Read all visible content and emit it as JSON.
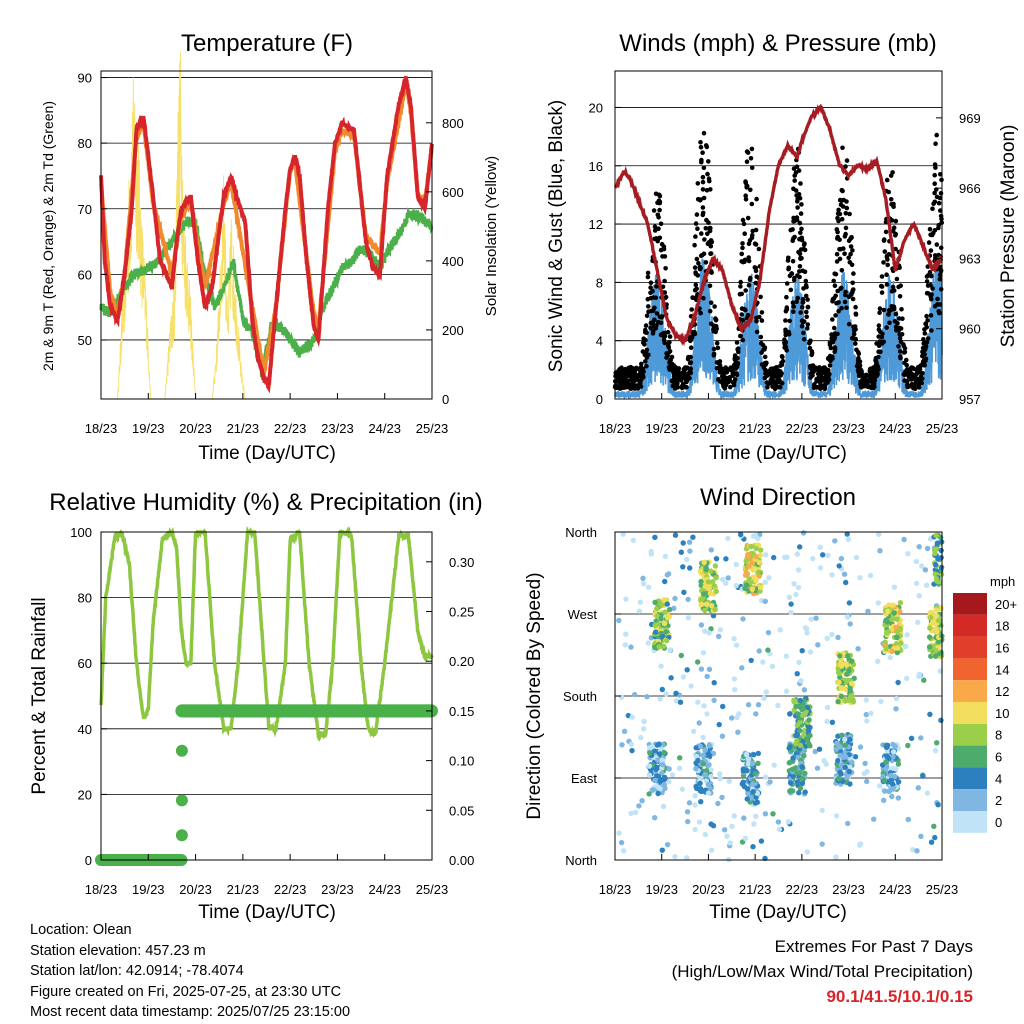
{
  "x_ticks": [
    "18/23",
    "19/23",
    "20/23",
    "21/23",
    "22/23",
    "23/23",
    "24/23",
    "25/23"
  ],
  "x_axis_label": "Time (Day/UTC)",
  "panels": {
    "temperature": {
      "title": "Temperature (F)",
      "ylabel_left": "2m & 9m T (Red, Orange) & 2m Td (Green)",
      "ylabel_right": "Solar Insolation (Yellow)",
      "yticks_left": [
        "90",
        "80",
        "70",
        "60",
        "50"
      ],
      "yticks_right": [
        "800",
        "600",
        "400",
        "200",
        "0"
      ]
    },
    "winds": {
      "title": "Winds (mph) & Pressure (mb)",
      "ylabel_left": "Sonic Wind & Gust (Blue, Black)",
      "ylabel_right": "Station Pressure (Maroon)",
      "yticks_left": [
        "20",
        "16",
        "12",
        "8",
        "4",
        "0"
      ],
      "yticks_right": [
        "969",
        "966",
        "963",
        "960",
        "957"
      ]
    },
    "humidity": {
      "title": "Relative Humidity (%) & Precipitation (in)",
      "ylabel_left": "Percent & Total Rainfall",
      "yticks_left": [
        "100",
        "80",
        "60",
        "40",
        "20",
        "0"
      ],
      "yticks_right": [
        "0.30",
        "0.25",
        "0.20",
        "0.15",
        "0.10",
        "0.05",
        "0.00"
      ]
    },
    "direction": {
      "title": "Wind Direction",
      "ylabel_left": "Direction (Colored By Speed)",
      "yticks_left": [
        "North",
        "West",
        "South",
        "East",
        "North"
      ],
      "legend_title": "mph",
      "legend_labels": [
        "20+",
        "18",
        "16",
        "14",
        "12",
        "10",
        "8",
        "6",
        "4",
        "2",
        "0"
      ],
      "legend_colors": [
        "#a5191d",
        "#d42a26",
        "#e23f2a",
        "#f1642f",
        "#f9a84a",
        "#f2dd5c",
        "#9bcf49",
        "#4dab6c",
        "#2c80bd",
        "#7fb7e2",
        "#c1e3f7"
      ]
    }
  },
  "chart_data": [
    {
      "type": "line",
      "title": "Temperature (F)",
      "x_range": [
        "18/23",
        "25/23"
      ],
      "ylim_left": [
        41,
        91
      ],
      "ylim_right": [
        0,
        950
      ],
      "series": [
        {
          "name": "2m T",
          "color": "#d6262b",
          "axis": "left",
          "x_days": [
            0,
            0.08,
            0.2,
            0.35,
            0.5,
            0.65,
            0.75,
            0.9,
            1.1,
            1.25,
            1.5,
            1.6,
            1.7,
            1.9,
            2.05,
            2.2,
            2.35,
            2.6,
            2.75,
            2.9,
            3.05,
            3.2,
            3.3,
            3.45,
            3.55,
            3.7,
            3.9,
            4.0,
            4.1,
            4.2,
            4.35,
            4.5,
            4.6,
            4.8,
            4.95,
            5.1,
            5.35,
            5.6,
            5.75,
            5.9,
            6.05,
            6.3,
            6.45,
            6.55,
            6.7,
            6.85,
            7.0
          ],
          "values": [
            75,
            62,
            55,
            53,
            60,
            70,
            82,
            84,
            72,
            62,
            58,
            65,
            70,
            72,
            62,
            55,
            58,
            72,
            75,
            71,
            68,
            53,
            48,
            44,
            43,
            55,
            70,
            76,
            78,
            75,
            62,
            52,
            50,
            70,
            80,
            83,
            82,
            65,
            61,
            60,
            75,
            86,
            90,
            86,
            72,
            70,
            80
          ]
        },
        {
          "name": "9m T",
          "color": "#f08a2e",
          "axis": "left",
          "x_days": [
            0,
            0.2,
            0.35,
            0.5,
            0.75,
            0.9,
            1.1,
            1.5,
            1.7,
            1.9,
            2.2,
            2.6,
            2.75,
            3.2,
            3.45,
            3.7,
            4.0,
            4.1,
            4.5,
            4.6,
            4.95,
            5.1,
            5.35,
            5.6,
            5.9,
            6.05,
            6.45,
            6.55,
            6.7,
            6.85,
            7.0
          ],
          "values": [
            74,
            57,
            54,
            60,
            81,
            83,
            71,
            60,
            69,
            71,
            58,
            71,
            74,
            55,
            45,
            55,
            76,
            77,
            54,
            52,
            79,
            82,
            81,
            66,
            63,
            74,
            89,
            85,
            72,
            71,
            79
          ]
        },
        {
          "name": "2m Td",
          "color": "#4bb04a",
          "axis": "left",
          "x_days": [
            0,
            0.2,
            0.5,
            0.7,
            1.0,
            1.2,
            1.4,
            1.6,
            1.8,
            2.0,
            2.2,
            2.4,
            2.6,
            2.8,
            3.0,
            3.2,
            3.4,
            3.6,
            3.8,
            4.0,
            4.2,
            4.5,
            4.7,
            4.9,
            5.1,
            5.3,
            5.5,
            5.7,
            5.9,
            6.1,
            6.3,
            6.5,
            6.7,
            6.9,
            7.0
          ],
          "values": [
            55,
            54,
            58,
            60,
            61,
            62,
            64,
            66,
            68,
            68,
            60,
            55,
            58,
            62,
            53,
            51,
            45,
            52,
            52,
            50,
            48,
            50,
            55,
            58,
            61,
            62,
            64,
            63,
            61,
            64,
            66,
            69,
            69,
            68,
            67
          ]
        },
        {
          "name": "Solar Insolation",
          "color": "#f7e06a",
          "axis": "right",
          "x_days": [
            0,
            0.35,
            0.45,
            0.55,
            0.62,
            0.7,
            0.78,
            0.85,
            0.95,
            1.05,
            1.35,
            1.45,
            1.55,
            1.62,
            1.68,
            1.75,
            1.82,
            1.9,
            2.0,
            2.35,
            2.45,
            2.52,
            2.6,
            2.68,
            2.75,
            2.85,
            2.95,
            3.05,
            7.0
          ],
          "values": [
            0,
            0,
            250,
            450,
            650,
            860,
            700,
            500,
            300,
            0,
            0,
            180,
            300,
            750,
            920,
            500,
            400,
            250,
            0,
            0,
            150,
            350,
            600,
            200,
            500,
            300,
            100,
            0,
            0
          ]
        }
      ]
    },
    {
      "type": "line",
      "title": "Winds (mph) & Pressure (mb)",
      "x_range": [
        "18/23",
        "25/23"
      ],
      "ylim_left": [
        0,
        22.5
      ],
      "ylim_right": [
        957,
        971
      ],
      "series": [
        {
          "name": "Station Pressure",
          "color": "#a51d23",
          "axis": "right",
          "x_days": [
            0,
            0.2,
            0.3,
            0.5,
            0.7,
            0.9,
            1.1,
            1.3,
            1.5,
            1.7,
            1.9,
            2.1,
            2.3,
            2.5,
            2.7,
            2.9,
            3.1,
            3.3,
            3.5,
            3.7,
            3.9,
            4.0,
            4.2,
            4.4,
            4.6,
            4.8,
            5.0,
            5.2,
            5.4,
            5.6,
            5.8,
            6.0,
            6.2,
            6.4,
            6.6,
            6.8,
            7.0
          ],
          "values": [
            966,
            966.7,
            966.5,
            965.5,
            964.5,
            962.5,
            960.5,
            959.7,
            959.5,
            960.5,
            962,
            963,
            962.5,
            961,
            960,
            960.3,
            962,
            965,
            967,
            967.8,
            967.3,
            968,
            969,
            969.5,
            968.5,
            967,
            966.5,
            967,
            966.8,
            967.2,
            965.5,
            962.5,
            963.8,
            964.5,
            963.5,
            962.5,
            963
          ]
        },
        {
          "name": "Sonic Wind",
          "color": "#4e9ad8",
          "axis": "left",
          "style": "diurnal band",
          "peaks_days": [
            0.9,
            1.9,
            2.9,
            3.9,
            4.9,
            5.9,
            6.9
          ],
          "peak_values": [
            8,
            9,
            8,
            8,
            8,
            8,
            9
          ],
          "trough_value": 0.5
        },
        {
          "name": "Gust",
          "color": "#000000",
          "axis": "left",
          "style": "points",
          "peaks_days": [
            0.9,
            1.9,
            2.9,
            3.9,
            4.9,
            5.9,
            6.9
          ],
          "peak_values": [
            14,
            18,
            17,
            16,
            16,
            15,
            17
          ],
          "trough_value": 2
        }
      ]
    },
    {
      "type": "line",
      "title": "Relative Humidity (%) & Precipitation (in)",
      "x_range": [
        "18/23",
        "25/23"
      ],
      "ylim_left": [
        0,
        100
      ],
      "ylim_right": [
        0,
        0.33
      ],
      "series": [
        {
          "name": "Relative Humidity",
          "color": "#8dc63f",
          "axis": "left",
          "x_days": [
            0,
            0.1,
            0.3,
            0.45,
            0.6,
            0.75,
            0.9,
            1.0,
            1.1,
            1.3,
            1.5,
            1.6,
            1.7,
            1.8,
            1.9,
            2.0,
            2.2,
            2.4,
            2.6,
            2.75,
            2.9,
            3.1,
            3.25,
            3.4,
            3.55,
            3.7,
            3.9,
            4.0,
            4.2,
            4.4,
            4.6,
            4.75,
            4.9,
            5.05,
            5.3,
            5.5,
            5.65,
            5.8,
            6.0,
            6.3,
            6.5,
            6.7,
            6.85,
            7.0
          ],
          "values": [
            47,
            80,
            99,
            99,
            90,
            60,
            43,
            46,
            72,
            98,
            100,
            95,
            70,
            60,
            60,
            100,
            100,
            60,
            40,
            40,
            60,
            100,
            100,
            70,
            40,
            40,
            60,
            98,
            100,
            60,
            38,
            38,
            60,
            100,
            99,
            60,
            40,
            38,
            60,
            99,
            99,
            70,
            62,
            62
          ]
        },
        {
          "name": "Total Rainfall",
          "color": "#4bb04a",
          "axis": "right",
          "style": "points",
          "x_days": [
            0,
            0.5,
            1.0,
            1.5,
            1.71,
            1.71,
            1.71,
            1.71,
            1.71,
            2.5,
            3.5,
            4.5,
            5.5,
            6.5,
            7.0
          ],
          "values": [
            0,
            0,
            0,
            0,
            0,
            0.025,
            0.06,
            0.11,
            0.15,
            0.15,
            0.15,
            0.15,
            0.15,
            0.15,
            0.15
          ]
        }
      ]
    },
    {
      "type": "scatter",
      "title": "Wind Direction",
      "x_range": [
        "18/23",
        "25/23"
      ],
      "ylim": [
        "North",
        "North"
      ],
      "color_scale": {
        "unit": "mph",
        "min": 0,
        "max": 20
      },
      "clusters": [
        {
          "x_days": 0.9,
          "direction_deg": 100,
          "speed": 3
        },
        {
          "x_days": 1.0,
          "direction_deg": 260,
          "speed": 7
        },
        {
          "x_days": 1.9,
          "direction_deg": 100,
          "speed": 3
        },
        {
          "x_days": 2.0,
          "direction_deg": 300,
          "speed": 8
        },
        {
          "x_days": 2.9,
          "direction_deg": 90,
          "speed": 3
        },
        {
          "x_days": 2.95,
          "direction_deg": 320,
          "speed": 9
        },
        {
          "x_days": 3.9,
          "direction_deg": 100,
          "speed": 4
        },
        {
          "x_days": 4.0,
          "direction_deg": 150,
          "speed": 6
        },
        {
          "x_days": 4.9,
          "direction_deg": 110,
          "speed": 3
        },
        {
          "x_days": 4.95,
          "direction_deg": 200,
          "speed": 8
        },
        {
          "x_days": 5.9,
          "direction_deg": 100,
          "speed": 3
        },
        {
          "x_days": 5.95,
          "direction_deg": 255,
          "speed": 9
        },
        {
          "x_days": 6.9,
          "direction_deg": 250,
          "speed": 8
        },
        {
          "x_days": 7.0,
          "direction_deg": 330,
          "speed": 6
        }
      ]
    }
  ],
  "info": {
    "location": "Location: Olean",
    "elevation": "Station elevation: 457.23 m",
    "latlon": "Station lat/lon: 42.0914; -78.4074",
    "created": "Figure created on Fri, 2025-07-25, at 23:30 UTC",
    "recent": "Most recent data timestamp: 2025/07/25 23:15:00"
  },
  "extremes": {
    "line1": "Extremes For Past 7 Days",
    "line2": "(High/Low/Max Wind/Total Precipitation)",
    "values": "90.1/41.5/10.1/0.15"
  }
}
